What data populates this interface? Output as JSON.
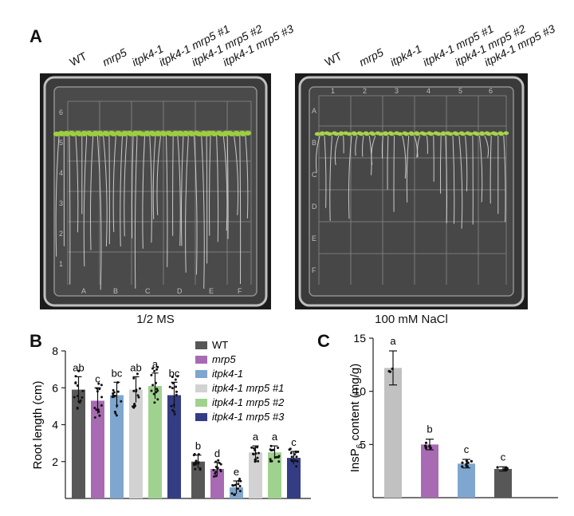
{
  "panels": {
    "a": "A",
    "b": "B",
    "c": "C"
  },
  "genotypes": [
    "WT",
    "mrp5",
    "itpk4-1",
    "itpk4-1 mrp5 #1",
    "itpk4-1 mrp5 #2",
    "itpk4-1 mrp5 #3"
  ],
  "plates": [
    {
      "caption": "1/2 MS",
      "rows": [
        "6",
        "5",
        "4",
        "3",
        "2",
        "1"
      ],
      "cols": [
        "A",
        "B",
        "C",
        "D",
        "E",
        "F"
      ]
    },
    {
      "caption": "100 mM NaCl",
      "rows": [
        "A",
        "B",
        "C",
        "D",
        "E",
        "F"
      ],
      "cols": [
        "1",
        "2",
        "3",
        "4",
        "5",
        "6"
      ]
    }
  ],
  "colors": {
    "WT": "#575757",
    "mrp5": "#a86bb3",
    "itpk4-1": "#7fa6cf",
    "itpk4-1 mrp5 #1": "#d2d2d2",
    "itpk4-1 mrp5 #2": "#9fd28f",
    "itpk4-1 mrp5 #3": "#343c83",
    "panelC_bar1": "#c1c1c1"
  },
  "chart_data": [
    {
      "type": "bar",
      "panel": "B",
      "ylabel": "Root length (cm)",
      "ylim": [
        0,
        8
      ],
      "yticks": [
        2,
        4,
        6,
        8
      ],
      "groups": [
        "1/2 MS",
        "100 mM NaCl"
      ],
      "series": [
        {
          "name": "WT",
          "values": [
            5.9,
            2.0
          ],
          "letters": [
            "ab",
            "b"
          ]
        },
        {
          "name": "mrp5",
          "values": [
            5.3,
            1.6
          ],
          "letters": [
            "c",
            "d"
          ]
        },
        {
          "name": "itpk4-1",
          "values": [
            5.6,
            0.6
          ],
          "letters": [
            "bc",
            "e"
          ]
        },
        {
          "name": "itpk4-1 mrp5 #1",
          "values": [
            5.9,
            2.5
          ],
          "letters": [
            "ab",
            "a"
          ]
        },
        {
          "name": "itpk4-1 mrp5 #2",
          "values": [
            6.1,
            2.5
          ],
          "letters": [
            "a",
            "a"
          ]
        },
        {
          "name": "itpk4-1 mrp5 #3",
          "values": [
            5.6,
            2.2
          ],
          "letters": [
            "bc",
            "c"
          ]
        }
      ],
      "legend": [
        "WT",
        "mrp5",
        "itpk4-1",
        "itpk4-1 mrp5 #1",
        "itpk4-1 mrp5 #2",
        "itpk4-1 mrp5 #3"
      ],
      "legend_position": "top-right"
    },
    {
      "type": "bar",
      "panel": "C",
      "ylabel_main": "InsP",
      "ylabel_sub": "6",
      "ylabel_rest": " content (mg/g)",
      "ylim": [
        0,
        15
      ],
      "yticks": [
        5,
        10,
        15
      ],
      "values": [
        12.2,
        5.0,
        3.2,
        2.7
      ],
      "errors": [
        1.6,
        0.5,
        0.4,
        0.2
      ],
      "letters": [
        "a",
        "b",
        "c",
        "c"
      ]
    }
  ]
}
